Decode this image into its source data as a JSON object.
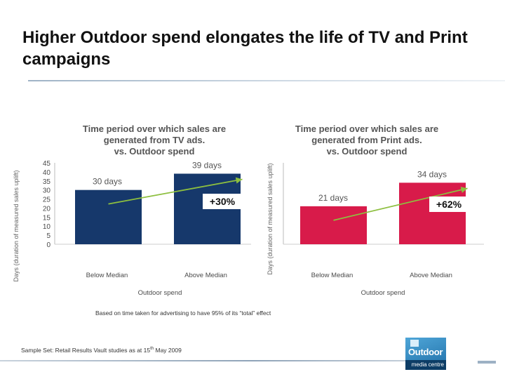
{
  "slide": {
    "title": "Higher Outdoor spend elongates the life of TV and Print campaigns",
    "footnote": "Based on time taken for advertising to have 95% of its “total” effect",
    "sample_set_prefix": "Sample Set: Retail Results Vault studies as at 15",
    "sample_set_sup": "th",
    "sample_set_suffix": " May 2009"
  },
  "logo": {
    "word": "Outdoor",
    "sub": "media centre"
  },
  "colors": {
    "tv_bar": "#16386b",
    "print_bar": "#d81b4a",
    "trend": "#8dbf3f",
    "axis_text": "#4a4a4a"
  },
  "chart_data": [
    {
      "type": "bar",
      "title": "Time period over which sales are generated from TV ads. vs. Outdoor spend",
      "title_lines": [
        "Time period over which sales are",
        "generated from TV ads.",
        "vs. Outdoor spend"
      ],
      "categories": [
        "Below Median",
        "Above Median"
      ],
      "values": [
        30,
        39
      ],
      "data_labels": [
        "30 days",
        "39 days"
      ],
      "xlabel": "Outdoor spend",
      "ylabel": "Days (duration of measured sales uplift)",
      "ylim": [
        0,
        45
      ],
      "yticks": [
        0,
        5,
        10,
        15,
        20,
        25,
        30,
        35,
        40,
        45
      ],
      "annotation": "+30%",
      "grid": false
    },
    {
      "type": "bar",
      "title": "Time period over which sales are generated from Print ads. vs. Outdoor spend",
      "title_lines": [
        "Time period over which sales are",
        "generated from Print ads.",
        "vs. Outdoor spend"
      ],
      "categories": [
        "Below Median",
        "Above Median"
      ],
      "values": [
        21,
        34
      ],
      "data_labels": [
        "21 days",
        "34 days"
      ],
      "xlabel": "Outdoor spend",
      "ylabel": "Days (duration of measured sales uplift)",
      "ylim": [
        0,
        45
      ],
      "yticks": [],
      "annotation": "+62%",
      "grid": false
    }
  ]
}
